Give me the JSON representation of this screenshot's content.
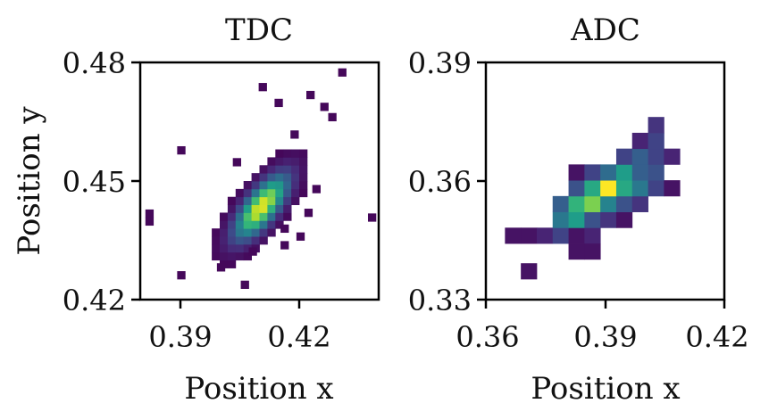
{
  "chart_data": [
    {
      "type": "heatmap",
      "title": "TDC",
      "xlabel": "Position x",
      "ylabel": "Position y",
      "xlim": [
        0.38,
        0.44
      ],
      "ylim": [
        0.42,
        0.48
      ],
      "x_ticks": [
        "0.39",
        "0.42"
      ],
      "y_ticks": [
        "0.42",
        "0.45",
        "0.48"
      ],
      "colormap": "viridis",
      "grid": false,
      "bin_size": 0.002,
      "peak": [
        0.4105,
        0.4435
      ],
      "spread": [
        0.005,
        0.006
      ],
      "correlation": 0.72,
      "outlier_bins": [
        [
          0.3893,
          0.4252
        ],
        [
          0.3813,
          0.4408
        ],
        [
          0.3813,
          0.4388
        ],
        [
          0.4373,
          0.4398
        ],
        [
          0.4298,
          0.4765
        ],
        [
          0.4218,
          0.4708
        ],
        [
          0.4138,
          0.4688
        ],
        [
          0.4178,
          0.4608
        ],
        [
          0.3893,
          0.4568
        ],
        [
          0.4098,
          0.4728
        ],
        [
          0.4253,
          0.4678
        ],
        [
          0.4033,
          0.4538
        ],
        [
          0.4273,
          0.4652
        ],
        [
          0.4153,
          0.437
        ],
        [
          0.4193,
          0.435
        ],
        [
          0.4053,
          0.4228
        ],
        [
          0.4073,
          0.4312
        ],
        [
          0.3993,
          0.4272
        ],
        [
          0.4153,
          0.4328
        ],
        [
          0.4213,
          0.441
        ],
        [
          0.4233,
          0.447
        ]
      ]
    },
    {
      "type": "heatmap",
      "title": "ADC",
      "xlabel": "Position x",
      "ylabel": "",
      "xlim": [
        0.36,
        0.42
      ],
      "ylim": [
        0.33,
        0.39
      ],
      "x_ticks": [
        "0.36",
        "0.39",
        "0.42"
      ],
      "y_ticks": [
        "0.33",
        "0.36",
        "0.39"
      ],
      "colormap": "viridis",
      "grid": false,
      "cells": [
        {
          "x": 0.3708,
          "y": 0.3372,
          "v": 0.05
        },
        {
          "x": 0.3668,
          "y": 0.3462,
          "v": 0.05
        },
        {
          "x": 0.3708,
          "y": 0.3462,
          "v": 0.05
        },
        {
          "x": 0.3748,
          "y": 0.3462,
          "v": 0.1
        },
        {
          "x": 0.3788,
          "y": 0.3462,
          "v": 0.2
        },
        {
          "x": 0.3828,
          "y": 0.3462,
          "v": 0.05
        },
        {
          "x": 0.3868,
          "y": 0.3462,
          "v": 0.1
        },
        {
          "x": 0.3828,
          "y": 0.3422,
          "v": 0.05
        },
        {
          "x": 0.3868,
          "y": 0.3422,
          "v": 0.05
        },
        {
          "x": 0.3788,
          "y": 0.3502,
          "v": 0.4
        },
        {
          "x": 0.3828,
          "y": 0.3502,
          "v": 0.55
        },
        {
          "x": 0.3868,
          "y": 0.3502,
          "v": 0.25
        },
        {
          "x": 0.3908,
          "y": 0.3502,
          "v": 0.15
        },
        {
          "x": 0.3948,
          "y": 0.3502,
          "v": 0.05
        },
        {
          "x": 0.3788,
          "y": 0.3542,
          "v": 0.3
        },
        {
          "x": 0.3828,
          "y": 0.3542,
          "v": 0.65
        },
        {
          "x": 0.3868,
          "y": 0.3542,
          "v": 0.8
        },
        {
          "x": 0.3908,
          "y": 0.3542,
          "v": 0.45
        },
        {
          "x": 0.3948,
          "y": 0.3542,
          "v": 0.25
        },
        {
          "x": 0.3988,
          "y": 0.3542,
          "v": 0.15
        },
        {
          "x": 0.3828,
          "y": 0.3582,
          "v": 0.25
        },
        {
          "x": 0.3868,
          "y": 0.3582,
          "v": 0.6
        },
        {
          "x": 0.3908,
          "y": 0.3582,
          "v": 1.0
        },
        {
          "x": 0.3948,
          "y": 0.3582,
          "v": 0.6
        },
        {
          "x": 0.3988,
          "y": 0.3582,
          "v": 0.4
        },
        {
          "x": 0.4028,
          "y": 0.3582,
          "v": 0.2
        },
        {
          "x": 0.4068,
          "y": 0.3582,
          "v": 0.05
        },
        {
          "x": 0.3828,
          "y": 0.3622,
          "v": 0.05
        },
        {
          "x": 0.3868,
          "y": 0.3622,
          "v": 0.2
        },
        {
          "x": 0.3908,
          "y": 0.3622,
          "v": 0.35
        },
        {
          "x": 0.3948,
          "y": 0.3622,
          "v": 0.55
        },
        {
          "x": 0.3988,
          "y": 0.3622,
          "v": 0.3
        },
        {
          "x": 0.4028,
          "y": 0.3622,
          "v": 0.25
        },
        {
          "x": 0.3948,
          "y": 0.3662,
          "v": 0.2
        },
        {
          "x": 0.3988,
          "y": 0.3662,
          "v": 0.3
        },
        {
          "x": 0.4028,
          "y": 0.3662,
          "v": 0.2
        },
        {
          "x": 0.4068,
          "y": 0.3662,
          "v": 0.1
        },
        {
          "x": 0.3988,
          "y": 0.3702,
          "v": 0.1
        },
        {
          "x": 0.4028,
          "y": 0.3702,
          "v": 0.2
        },
        {
          "x": 0.4028,
          "y": 0.3742,
          "v": 0.15
        }
      ]
    }
  ]
}
